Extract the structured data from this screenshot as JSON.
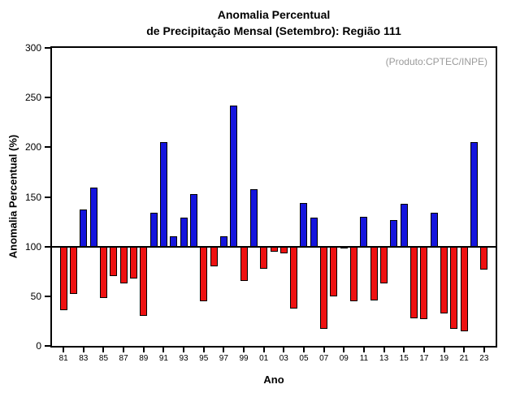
{
  "title": {
    "line1": "Anomalia Percentual",
    "line2": "de Precipitação Mensal (Setembro): Região 111"
  },
  "annotation": "(Produto:CPTEC/INPE)",
  "axes": {
    "y_label": "Anomalia Percentual (%)",
    "x_label": "Ano"
  },
  "chart_data": {
    "type": "bar",
    "title": "Anomalia Percentual de Precipitação Mensal (Setembro): Região 111",
    "xlabel": "Ano",
    "ylabel": "Anomalia Percentual (%)",
    "ylim": [
      0,
      300
    ],
    "yticks": [
      0,
      50,
      100,
      150,
      200,
      250,
      300
    ],
    "baseline": 100,
    "grid": false,
    "legend": "none",
    "annotation": "(Produto:CPTEC/INPE)",
    "bar_color_above": "#1515dd",
    "bar_color_below": "#ee1111",
    "years": [
      1981,
      1982,
      1983,
      1984,
      1985,
      1986,
      1987,
      1988,
      1989,
      1990,
      1991,
      1992,
      1993,
      1994,
      1995,
      1996,
      1997,
      1998,
      1999,
      2000,
      2001,
      2002,
      2003,
      2004,
      2005,
      2006,
      2007,
      2008,
      2009,
      2010,
      2011,
      2012,
      2013,
      2014,
      2015,
      2016,
      2017,
      2018,
      2019,
      2020,
      2021,
      2022,
      2023
    ],
    "x_tick_labels": [
      "81",
      "83",
      "85",
      "87",
      "89",
      "91",
      "93",
      "95",
      "97",
      "99",
      "01",
      "03",
      "05",
      "07",
      "09",
      "11",
      "13",
      "15",
      "17",
      "19",
      "21",
      "23"
    ],
    "values": [
      36,
      52,
      137,
      159,
      48,
      70,
      63,
      68,
      30,
      134,
      205,
      110,
      129,
      153,
      45,
      80,
      110,
      242,
      65,
      158,
      78,
      95,
      93,
      38,
      144,
      129,
      17,
      50,
      99,
      45,
      130,
      46,
      63,
      127,
      143,
      28,
      27,
      134,
      33,
      17,
      15,
      205,
      77
    ]
  }
}
